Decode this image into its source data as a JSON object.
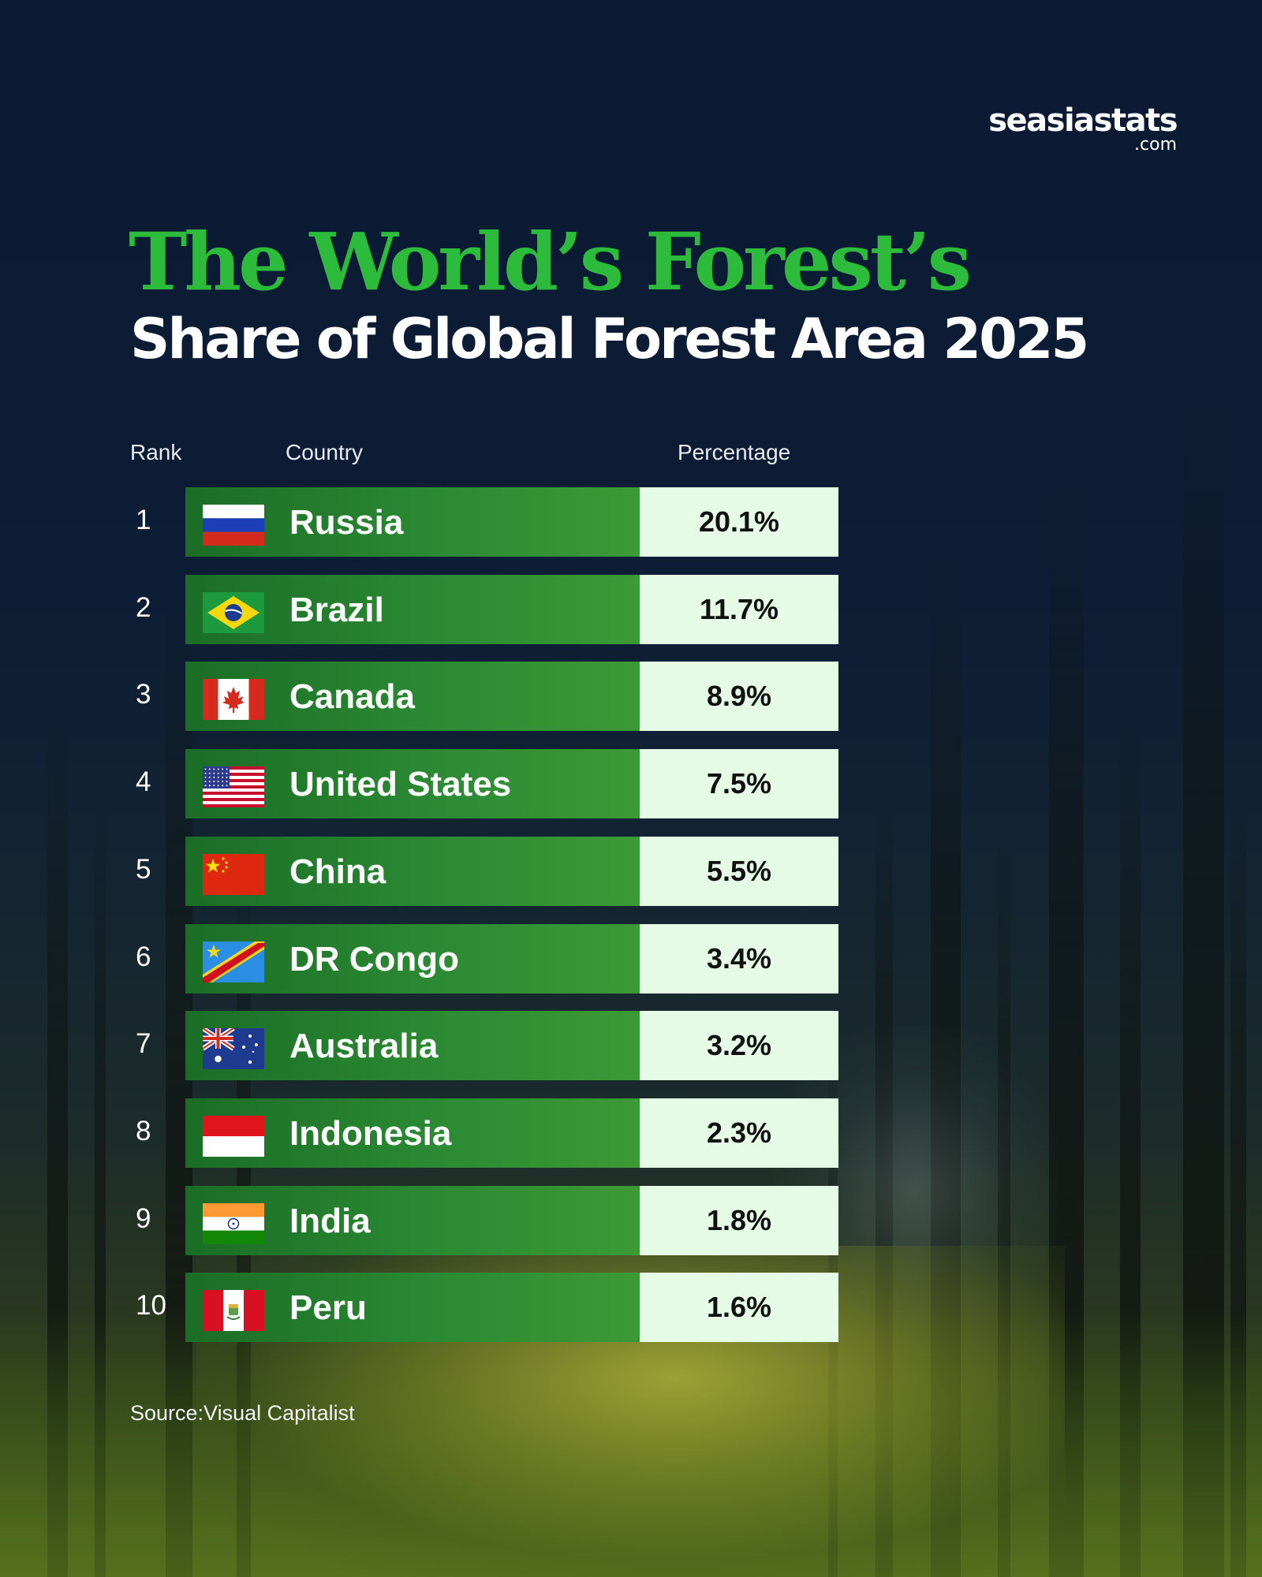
{
  "brand": {
    "name": "seasiastats",
    "suffix": ".com"
  },
  "title": "The World’s Forest’s",
  "subtitle": "Share of Global Forest Area 2025",
  "columns": {
    "rank": "Rank",
    "country": "Country",
    "percentage": "Percentage"
  },
  "source": "Source:Visual Capitalist",
  "colors": {
    "title_green": "#2dbb3b",
    "bar_green": "#2b8a33",
    "value_cell": "#e6fbe6"
  },
  "chart_data": {
    "type": "table",
    "title": "The World’s Forest’s",
    "subtitle": "Share of Global Forest Area 2025",
    "columns": [
      "Rank",
      "Country",
      "Percentage"
    ],
    "rows": [
      {
        "rank": "1",
        "country": "Russia",
        "percentage": "20.1%",
        "value": 20.1,
        "flag": "russia-flag-icon"
      },
      {
        "rank": "2",
        "country": "Brazil",
        "percentage": "11.7%",
        "value": 11.7,
        "flag": "brazil-flag-icon"
      },
      {
        "rank": "3",
        "country": "Canada",
        "percentage": "8.9%",
        "value": 8.9,
        "flag": "canada-flag-icon"
      },
      {
        "rank": "4",
        "country": "United States",
        "percentage": "7.5%",
        "value": 7.5,
        "flag": "usa-flag-icon"
      },
      {
        "rank": "5",
        "country": "China",
        "percentage": "5.5%",
        "value": 5.5,
        "flag": "china-flag-icon"
      },
      {
        "rank": "6",
        "country": "DR Congo",
        "percentage": "3.4%",
        "value": 3.4,
        "flag": "dr-congo-flag-icon"
      },
      {
        "rank": "7",
        "country": "Australia",
        "percentage": "3.2%",
        "value": 3.2,
        "flag": "australia-flag-icon"
      },
      {
        "rank": "8",
        "country": "Indonesia",
        "percentage": "2.3%",
        "value": 2.3,
        "flag": "indonesia-flag-icon"
      },
      {
        "rank": "9",
        "country": "India",
        "percentage": "1.8%",
        "value": 1.8,
        "flag": "india-flag-icon"
      },
      {
        "rank": "10",
        "country": "Peru",
        "percentage": "1.6%",
        "value": 1.6,
        "flag": "peru-flag-icon"
      }
    ],
    "source": "Source:Visual Capitalist"
  }
}
